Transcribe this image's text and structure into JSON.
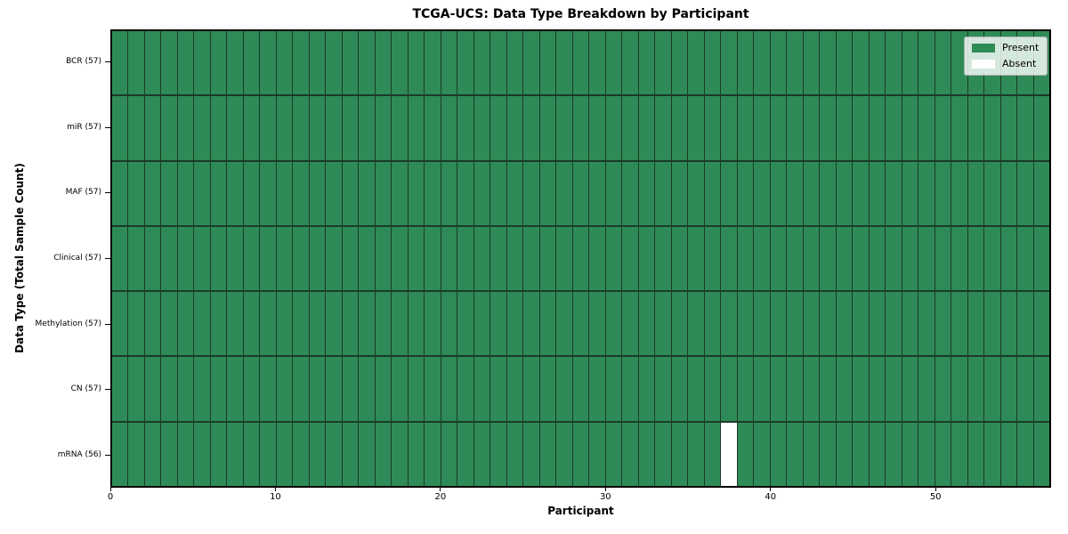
{
  "chart_data": {
    "type": "heatmap",
    "title": "TCGA-UCS: Data Type Breakdown by Participant",
    "xlabel": "Participant",
    "ylabel": "Data Type (Total Sample Count)",
    "n_participants": 57,
    "x_ticks": [
      0,
      10,
      20,
      30,
      40,
      50
    ],
    "rows": [
      {
        "label": "BCR (57)",
        "data_type": "BCR",
        "present_count": 57,
        "absent_participants": []
      },
      {
        "label": "miR (57)",
        "data_type": "miR",
        "present_count": 57,
        "absent_participants": []
      },
      {
        "label": "MAF (57)",
        "data_type": "MAF",
        "present_count": 57,
        "absent_participants": []
      },
      {
        "label": "Clinical (57)",
        "data_type": "Clinical",
        "present_count": 57,
        "absent_participants": []
      },
      {
        "label": "Methylation (57)",
        "data_type": "Methylation",
        "present_count": 57,
        "absent_participants": []
      },
      {
        "label": "CN (57)",
        "data_type": "CN",
        "present_count": 57,
        "absent_participants": []
      },
      {
        "label": "mRNA (56)",
        "data_type": "mRNA",
        "present_count": 56,
        "absent_participants": [
          37
        ]
      }
    ],
    "legend": {
      "position": "upper right",
      "entries": [
        {
          "label": "Present",
          "color": "#2e8b57"
        },
        {
          "label": "Absent",
          "color": "#ffffff"
        }
      ]
    },
    "colors": {
      "present": "#2e8b57",
      "absent": "#ffffff",
      "cell_border": "#1c3a28",
      "frame": "#000000"
    }
  }
}
